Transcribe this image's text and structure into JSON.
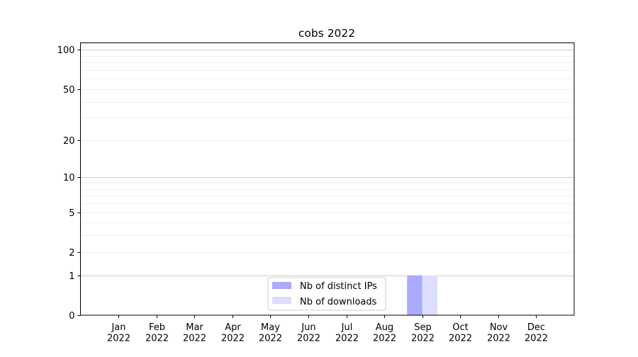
{
  "chart_data": {
    "type": "bar",
    "title": "cobs 2022",
    "xlabel": "",
    "ylabel": "",
    "y_scale": "log(1+y)",
    "ylim": [
      0,
      113
    ],
    "y_ticks": [
      0,
      1,
      2,
      5,
      10,
      20,
      50,
      100
    ],
    "y_tick_labels": [
      "0",
      "1",
      "2",
      "5",
      "10",
      "20",
      "50",
      "100"
    ],
    "categories": [
      "Jan\n2022",
      "Feb\n2022",
      "Mar\n2022",
      "Apr\n2022",
      "May\n2022",
      "Jun\n2022",
      "Jul\n2022",
      "Aug\n2022",
      "Sep\n2022",
      "Oct\n2022",
      "Nov\n2022",
      "Dec\n2022"
    ],
    "category_lines": [
      [
        "Jan",
        "2022"
      ],
      [
        "Feb",
        "2022"
      ],
      [
        "Mar",
        "2022"
      ],
      [
        "Apr",
        "2022"
      ],
      [
        "May",
        "2022"
      ],
      [
        "Jun",
        "2022"
      ],
      [
        "Jul",
        "2022"
      ],
      [
        "Aug",
        "2022"
      ],
      [
        "Sep",
        "2022"
      ],
      [
        "Oct",
        "2022"
      ],
      [
        "Nov",
        "2022"
      ],
      [
        "Dec",
        "2022"
      ]
    ],
    "series": [
      {
        "name": "Nb of distinct IPs",
        "color": "#aaaaff",
        "values": [
          0,
          0,
          0,
          0,
          0,
          0,
          0,
          0,
          1,
          0,
          0,
          0
        ]
      },
      {
        "name": "Nb of downloads",
        "color": "#ddddff",
        "values": [
          0,
          0,
          0,
          0,
          0,
          0,
          0,
          0,
          1,
          0,
          0,
          0
        ]
      }
    ],
    "grid": true,
    "legend_position": "lower-center"
  }
}
